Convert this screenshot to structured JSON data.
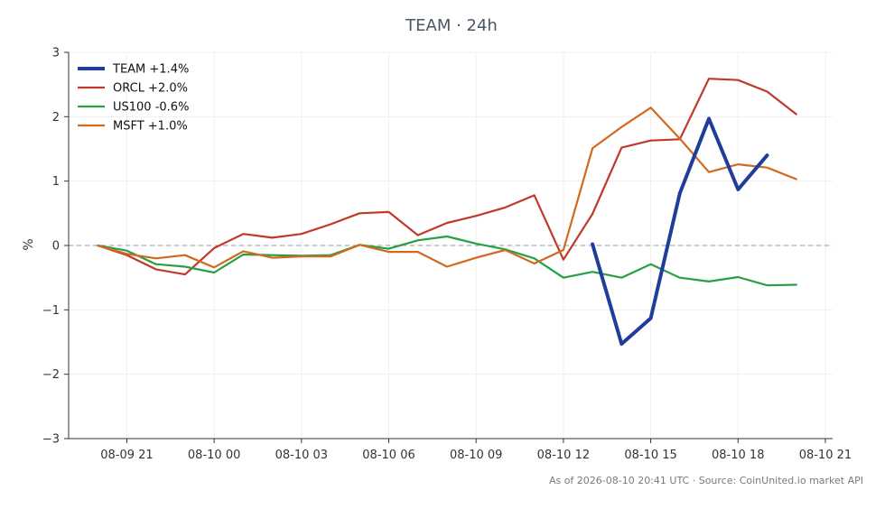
{
  "chart_data": {
    "type": "line",
    "title": "TEAM · 24h",
    "ylabel": "%",
    "xlabel": "",
    "ylim": [
      -3,
      3
    ],
    "yticks": [
      3,
      2,
      1,
      0,
      -1,
      -2,
      -3
    ],
    "ytick_labels": [
      "3",
      "2",
      "1",
      "0",
      "−1",
      "−2",
      "−3"
    ],
    "xlim": [
      "2026-08-09 19:00",
      "2026-08-10 21:15"
    ],
    "xticks": [
      "2026-08-09 21:00",
      "2026-08-10 00:00",
      "2026-08-10 03:00",
      "2026-08-10 06:00",
      "2026-08-10 09:00",
      "2026-08-10 12:00",
      "2026-08-10 15:00",
      "2026-08-10 18:00",
      "2026-08-10 21:00"
    ],
    "xtick_labels": [
      "08-09 21",
      "08-10 00",
      "08-10 03",
      "08-10 06",
      "08-10 09",
      "08-10 12",
      "08-10 15",
      "08-10 18",
      "08-10 21"
    ],
    "grid": true,
    "reference_line": 0,
    "legend_position": "top-left",
    "series": [
      {
        "name": "TEAM +1.4%",
        "color": "#1f3d99",
        "x": [
          "2026-08-10 13:00",
          "2026-08-10 14:00",
          "2026-08-10 15:00",
          "2026-08-10 16:00",
          "2026-08-10 17:00",
          "2026-08-10 18:00",
          "2026-08-10 19:00"
        ],
        "values": [
          0.02,
          -1.53,
          -1.13,
          0.81,
          1.97,
          0.87,
          1.4
        ]
      },
      {
        "name": "ORCL +2.0%",
        "color": "#c0392b",
        "x": [
          "2026-08-09 20:00",
          "2026-08-09 21:00",
          "2026-08-09 22:00",
          "2026-08-09 23:00",
          "2026-08-10 00:00",
          "2026-08-10 01:00",
          "2026-08-10 02:00",
          "2026-08-10 03:00",
          "2026-08-10 04:00",
          "2026-08-10 05:00",
          "2026-08-10 06:00",
          "2026-08-10 07:00",
          "2026-08-10 08:00",
          "2026-08-10 09:00",
          "2026-08-10 10:00",
          "2026-08-10 11:00",
          "2026-08-10 12:00",
          "2026-08-10 13:00",
          "2026-08-10 14:00",
          "2026-08-10 15:00",
          "2026-08-10 16:00",
          "2026-08-10 17:00",
          "2026-08-10 18:00",
          "2026-08-10 19:00",
          "2026-08-10 20:00"
        ],
        "values": [
          0.0,
          -0.15,
          -0.37,
          -0.45,
          -0.04,
          0.18,
          0.12,
          0.18,
          0.33,
          0.5,
          0.52,
          0.16,
          0.35,
          0.46,
          0.59,
          0.78,
          -0.22,
          0.49,
          1.52,
          1.63,
          1.65,
          2.59,
          2.57,
          2.39,
          2.04
        ]
      },
      {
        "name": "US100 -0.6%",
        "color": "#27a045",
        "x": [
          "2026-08-09 20:00",
          "2026-08-09 21:00",
          "2026-08-09 22:00",
          "2026-08-09 23:00",
          "2026-08-10 00:00",
          "2026-08-10 01:00",
          "2026-08-10 02:00",
          "2026-08-10 03:00",
          "2026-08-10 04:00",
          "2026-08-10 05:00",
          "2026-08-10 06:00",
          "2026-08-10 07:00",
          "2026-08-10 08:00",
          "2026-08-10 09:00",
          "2026-08-10 10:00",
          "2026-08-10 11:00",
          "2026-08-10 12:00",
          "2026-08-10 13:00",
          "2026-08-10 14:00",
          "2026-08-10 15:00",
          "2026-08-10 16:00",
          "2026-08-10 17:00",
          "2026-08-10 18:00",
          "2026-08-10 19:00",
          "2026-08-10 20:00"
        ],
        "values": [
          0.0,
          -0.08,
          -0.29,
          -0.33,
          -0.42,
          -0.14,
          -0.15,
          -0.16,
          -0.15,
          0.01,
          -0.05,
          0.08,
          0.14,
          0.03,
          -0.06,
          -0.2,
          -0.5,
          -0.41,
          -0.5,
          -0.29,
          -0.5,
          -0.56,
          -0.49,
          -0.62,
          -0.61
        ]
      },
      {
        "name": "MSFT +1.0%",
        "color": "#d2691e",
        "x": [
          "2026-08-09 20:00",
          "2026-08-09 21:00",
          "2026-08-09 22:00",
          "2026-08-09 23:00",
          "2026-08-10 00:00",
          "2026-08-10 01:00",
          "2026-08-10 02:00",
          "2026-08-10 03:00",
          "2026-08-10 04:00",
          "2026-08-10 05:00",
          "2026-08-10 06:00",
          "2026-08-10 07:00",
          "2026-08-10 08:00",
          "2026-08-10 09:00",
          "2026-08-10 10:00",
          "2026-08-10 11:00",
          "2026-08-10 12:00",
          "2026-08-10 13:00",
          "2026-08-10 14:00",
          "2026-08-10 15:00",
          "2026-08-10 16:00",
          "2026-08-10 17:00",
          "2026-08-10 18:00",
          "2026-08-10 19:00",
          "2026-08-10 20:00"
        ],
        "values": [
          0.0,
          -0.13,
          -0.2,
          -0.15,
          -0.34,
          -0.09,
          -0.19,
          -0.17,
          -0.17,
          0.01,
          -0.1,
          -0.1,
          -0.33,
          -0.19,
          -0.07,
          -0.28,
          -0.07,
          1.51,
          1.84,
          2.14,
          1.66,
          1.14,
          1.26,
          1.21,
          1.03
        ]
      }
    ]
  },
  "footer": "As of 2026-08-10 20:41 UTC · Source: CoinUnited.io market API"
}
